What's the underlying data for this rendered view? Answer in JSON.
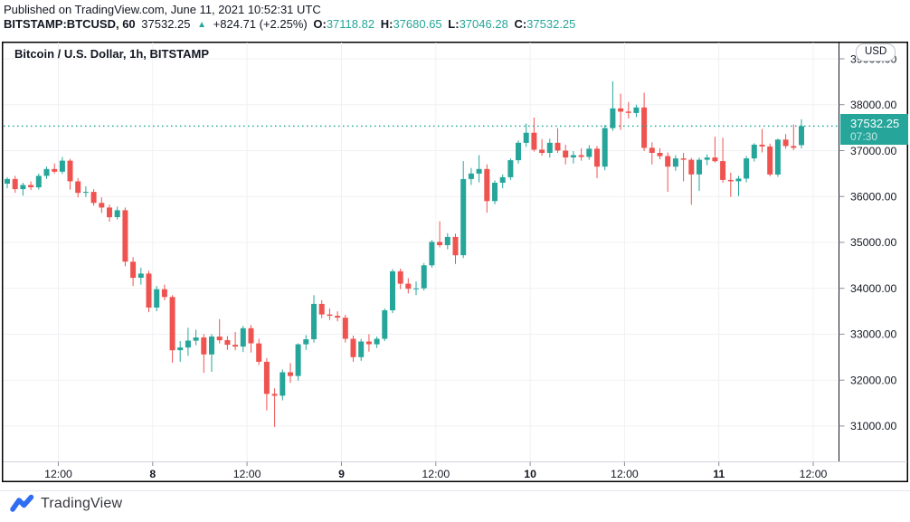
{
  "header": {
    "published_line": "Published on TradingView.com, June 11, 2021 10:52:31 UTC",
    "symbol_line": {
      "symbol": "BITSTAMP:BTCUSD, 60",
      "last_price": "37532.25",
      "direction_icon": "▲",
      "change": "+824.71 (+2.25%)",
      "ohlc": [
        {
          "label": "O:",
          "value": "37118.82"
        },
        {
          "label": "H:",
          "value": "37680.65"
        },
        {
          "label": "L:",
          "value": "37046.28"
        },
        {
          "label": "C:",
          "value": "37532.25"
        }
      ]
    }
  },
  "chart": {
    "title": "Bitcoin / U.S. Dollar, 1h, BITSTAMP",
    "currency_button": "USD",
    "price_label": {
      "price": "37532.25",
      "countdown": "07:30"
    },
    "colors": {
      "up": "#26a69a",
      "down": "#ef5350",
      "grid": "#f0f1f4",
      "axis_text": "#131722",
      "tick": "#8a8e99",
      "axis_separator": "#d1d4dc",
      "frame": "#000000",
      "current_price_line": "#26a69a",
      "price_label_bg": "#26a69a",
      "brand_blue": "#2f6df3"
    }
  },
  "chart_data": {
    "type": "candlestick",
    "title": "Bitcoin / U.S. Dollar, 1h, BITSTAMP",
    "exchange": "BITSTAMP",
    "pair": "Bitcoin / U.S. Dollar",
    "interval": "1h",
    "legend_note": "green = up candle, red = down candle",
    "ylim": [
      30220,
      39354
    ],
    "current_price": 37532.25,
    "price_axis_labels": [
      "39000.00",
      "38000.00",
      "37000.00",
      "36000.00",
      "35000.00",
      "34000.00",
      "33000.00",
      "32000.00",
      "31000.00"
    ],
    "time_axis_labels": [
      {
        "label": "12:00",
        "bold": false
      },
      {
        "label": "8",
        "bold": true
      },
      {
        "label": "12:00",
        "bold": false
      },
      {
        "label": "9",
        "bold": true
      },
      {
        "label": "12:00",
        "bold": false
      },
      {
        "label": "10",
        "bold": true
      },
      {
        "label": "12:00",
        "bold": false
      },
      {
        "label": "11",
        "bold": true
      },
      {
        "label": "12:00",
        "bold": false
      }
    ],
    "candles": [
      [
        36280,
        36420,
        36180,
        36380
      ],
      [
        36380,
        36450,
        36080,
        36160
      ],
      [
        36160,
        36300,
        36020,
        36250
      ],
      [
        36250,
        36330,
        36140,
        36200
      ],
      [
        36200,
        36500,
        36150,
        36450
      ],
      [
        36450,
        36650,
        36380,
        36600
      ],
      [
        36600,
        36720,
        36500,
        36540
      ],
      [
        36540,
        36860,
        36490,
        36780
      ],
      [
        36780,
        36820,
        36150,
        36330
      ],
      [
        36330,
        36400,
        35980,
        36080
      ],
      [
        36080,
        36220,
        35990,
        36100
      ],
      [
        36100,
        36160,
        35800,
        35860
      ],
      [
        35860,
        35980,
        35640,
        35760
      ],
      [
        35760,
        35820,
        35450,
        35550
      ],
      [
        35550,
        35780,
        35500,
        35700
      ],
      [
        35700,
        35760,
        34480,
        34580
      ],
      [
        34580,
        34680,
        34050,
        34230
      ],
      [
        34230,
        34450,
        34080,
        34320
      ],
      [
        34320,
        34380,
        33480,
        33580
      ],
      [
        33580,
        34050,
        33500,
        33980
      ],
      [
        33980,
        34080,
        33740,
        33810
      ],
      [
        33810,
        33850,
        32380,
        32650
      ],
      [
        32650,
        32850,
        32400,
        32710
      ],
      [
        32710,
        33140,
        32530,
        32860
      ],
      [
        32860,
        33100,
        32760,
        32930
      ],
      [
        32930,
        33000,
        32160,
        32560
      ],
      [
        32560,
        33000,
        32180,
        32950
      ],
      [
        32950,
        33330,
        32800,
        32870
      ],
      [
        32870,
        32960,
        32660,
        32770
      ],
      [
        32770,
        33050,
        32650,
        32730
      ],
      [
        32730,
        33180,
        32610,
        33130
      ],
      [
        33130,
        33200,
        32600,
        32800
      ],
      [
        32800,
        32900,
        32330,
        32400
      ],
      [
        32400,
        32480,
        31340,
        31700
      ],
      [
        31700,
        31820,
        30980,
        31660
      ],
      [
        31660,
        32230,
        31560,
        32170
      ],
      [
        32170,
        32370,
        31940,
        32090
      ],
      [
        32090,
        32800,
        31990,
        32780
      ],
      [
        32780,
        32980,
        32660,
        32890
      ],
      [
        32890,
        33850,
        32820,
        33660
      ],
      [
        33660,
        33740,
        33350,
        33430
      ],
      [
        33430,
        33560,
        33310,
        33400
      ],
      [
        33400,
        33500,
        33280,
        33360
      ],
      [
        33360,
        33420,
        32820,
        32900
      ],
      [
        32900,
        32970,
        32400,
        32500
      ],
      [
        32500,
        32900,
        32420,
        32840
      ],
      [
        32840,
        33000,
        32620,
        32780
      ],
      [
        32780,
        32950,
        32700,
        32900
      ],
      [
        32900,
        33560,
        32850,
        33520
      ],
      [
        33520,
        34420,
        33460,
        34370
      ],
      [
        34370,
        34430,
        33980,
        34100
      ],
      [
        34100,
        34220,
        33890,
        33990
      ],
      [
        33990,
        34150,
        33850,
        34000
      ],
      [
        34000,
        34550,
        33950,
        34500
      ],
      [
        34500,
        35050,
        34450,
        35010
      ],
      [
        35010,
        35460,
        34890,
        34940
      ],
      [
        34940,
        35200,
        34850,
        35120
      ],
      [
        35120,
        35190,
        34530,
        34720
      ],
      [
        34720,
        36770,
        34660,
        36380
      ],
      [
        36380,
        36620,
        36250,
        36500
      ],
      [
        36500,
        36900,
        36310,
        36600
      ],
      [
        36600,
        36700,
        35650,
        35900
      ],
      [
        35900,
        36350,
        35830,
        36300
      ],
      [
        36300,
        36480,
        36180,
        36420
      ],
      [
        36420,
        36830,
        36360,
        36790
      ],
      [
        36790,
        37220,
        36720,
        37170
      ],
      [
        37170,
        37590,
        37080,
        37390
      ],
      [
        37390,
        37720,
        36980,
        37020
      ],
      [
        37020,
        37250,
        36890,
        36950
      ],
      [
        36950,
        37260,
        36850,
        37170
      ],
      [
        37170,
        37490,
        36950,
        37000
      ],
      [
        37000,
        37130,
        36700,
        36850
      ],
      [
        36850,
        36990,
        36720,
        36900
      ],
      [
        36900,
        37050,
        36780,
        36860
      ],
      [
        36860,
        37120,
        36800,
        37040
      ],
      [
        37040,
        37100,
        36400,
        36650
      ],
      [
        36650,
        37560,
        36570,
        37490
      ],
      [
        37490,
        38510,
        37430,
        37920
      ],
      [
        37920,
        38240,
        37450,
        37850
      ],
      [
        37850,
        38060,
        37700,
        37820
      ],
      [
        37820,
        38000,
        37730,
        37940
      ],
      [
        37940,
        38260,
        36990,
        37060
      ],
      [
        37060,
        37180,
        36700,
        36950
      ],
      [
        36950,
        37050,
        36810,
        36880
      ],
      [
        36880,
        36960,
        36100,
        36650
      ],
      [
        36650,
        36900,
        36560,
        36830
      ],
      [
        36830,
        36950,
        36330,
        36800
      ],
      [
        36800,
        36840,
        35820,
        36480
      ],
      [
        36480,
        36850,
        36120,
        36800
      ],
      [
        36800,
        36920,
        36680,
        36850
      ],
      [
        36850,
        37300,
        36740,
        36770
      ],
      [
        36770,
        37280,
        36300,
        36360
      ],
      [
        36360,
        36520,
        35990,
        36330
      ],
      [
        36330,
        36450,
        36010,
        36390
      ],
      [
        36390,
        36880,
        36310,
        36830
      ],
      [
        36830,
        37160,
        36760,
        37130
      ],
      [
        37130,
        37470,
        36960,
        37090
      ],
      [
        37090,
        37150,
        36440,
        36480
      ],
      [
        36480,
        37260,
        36430,
        37240
      ],
      [
        37240,
        37360,
        37040,
        37100
      ],
      [
        37100,
        37570,
        37010,
        37060
      ],
      [
        37118.82,
        37680.65,
        37046.28,
        37532.25
      ]
    ]
  },
  "footer": {
    "brand": "TradingView"
  }
}
